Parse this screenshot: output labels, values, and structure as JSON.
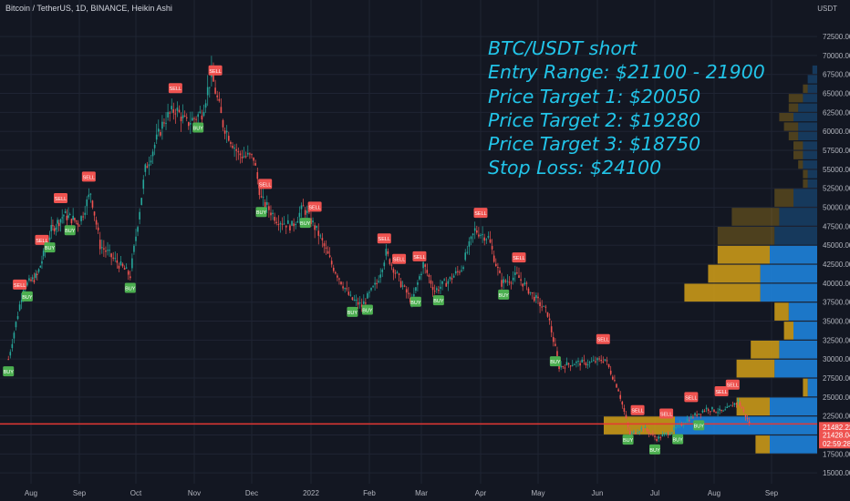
{
  "header": {
    "title": "Bitcoin / TetherUS, 1D, BINANCE, Heikin Ashi",
    "currency": "USDT"
  },
  "annotation": {
    "lines": [
      "BTC/USDT short",
      "Entry Range: $21100 - 21900",
      "Price Target 1: $20050",
      "Price Target 2: $19280",
      "Price Target 3: $18750",
      "Stop Loss: $24100"
    ]
  },
  "colors": {
    "background": "#131722",
    "bull": "#26a69a",
    "bear": "#ef5350",
    "annotation": "#22c4e8",
    "price_line": "#e53935",
    "vp_up": "#2962ff",
    "vp_down": "#d4a017"
  },
  "price_tags": {
    "last": "21482.22",
    "close": "21428.04",
    "countdown": "02:59:28"
  },
  "chart_data": {
    "type": "candlestick",
    "title": "Bitcoin / TetherUS, 1D, BINANCE, Heikin Ashi",
    "y_unit": "USDT",
    "ylim": [
      13500,
      73500
    ],
    "y_ticks": [
      "72500.00",
      "70000.00",
      "67500.00",
      "65000.00",
      "62500.00",
      "60000.00",
      "57500.00",
      "55000.00",
      "52500.00",
      "50000.00",
      "47500.00",
      "45000.00",
      "42500.00",
      "40000.00",
      "37500.00",
      "35000.00",
      "32500.00",
      "30000.00",
      "27500.00",
      "25000.00",
      "22500.00",
      "20000.00",
      "17500.00",
      "15000.00"
    ],
    "x_ticks": [
      "Aug",
      "Sep",
      "Oct",
      "Nov",
      "Dec",
      "2022",
      "Feb",
      "Mar",
      "Apr",
      "May",
      "Jun",
      "Jul",
      "Aug",
      "Sep"
    ],
    "price_path": [
      {
        "date": "2021-07-20",
        "price": 30000
      },
      {
        "date": "2021-07-28",
        "price": 39500
      },
      {
        "date": "2021-08-05",
        "price": 41000
      },
      {
        "date": "2021-08-14",
        "price": 47000
      },
      {
        "date": "2021-08-22",
        "price": 49000
      },
      {
        "date": "2021-09-01",
        "price": 48000
      },
      {
        "date": "2021-09-07",
        "price": 52000
      },
      {
        "date": "2021-09-12",
        "price": 45000
      },
      {
        "date": "2021-09-20",
        "price": 43000
      },
      {
        "date": "2021-09-28",
        "price": 41000
      },
      {
        "date": "2021-10-06",
        "price": 55000
      },
      {
        "date": "2021-10-16",
        "price": 61500
      },
      {
        "date": "2021-10-22",
        "price": 63000
      },
      {
        "date": "2021-10-28",
        "price": 61000
      },
      {
        "date": "2021-11-05",
        "price": 62500
      },
      {
        "date": "2021-11-10",
        "price": 67500
      },
      {
        "date": "2021-11-16",
        "price": 61000
      },
      {
        "date": "2021-11-24",
        "price": 57000
      },
      {
        "date": "2021-12-02",
        "price": 56500
      },
      {
        "date": "2021-12-06",
        "price": 51000
      },
      {
        "date": "2021-12-14",
        "price": 48500
      },
      {
        "date": "2021-12-22",
        "price": 47500
      },
      {
        "date": "2021-12-28",
        "price": 50000
      },
      {
        "date": "2022-01-05",
        "price": 46500
      },
      {
        "date": "2022-01-12",
        "price": 42500
      },
      {
        "date": "2022-01-22",
        "price": 38000
      },
      {
        "date": "2022-01-28",
        "price": 37000
      },
      {
        "date": "2022-02-05",
        "price": 40000
      },
      {
        "date": "2022-02-10",
        "price": 44000
      },
      {
        "date": "2022-02-18",
        "price": 40000
      },
      {
        "date": "2022-02-24",
        "price": 37500
      },
      {
        "date": "2022-03-02",
        "price": 42500
      },
      {
        "date": "2022-03-08",
        "price": 39000
      },
      {
        "date": "2022-03-16",
        "price": 40500
      },
      {
        "date": "2022-03-22",
        "price": 42000
      },
      {
        "date": "2022-03-29",
        "price": 47000
      },
      {
        "date": "2022-04-05",
        "price": 46000
      },
      {
        "date": "2022-04-12",
        "price": 40000
      },
      {
        "date": "2022-04-20",
        "price": 41000
      },
      {
        "date": "2022-04-28",
        "price": 38500
      },
      {
        "date": "2022-05-06",
        "price": 36000
      },
      {
        "date": "2022-05-12",
        "price": 29000
      },
      {
        "date": "2022-05-20",
        "price": 29500
      },
      {
        "date": "2022-05-28",
        "price": 29500
      },
      {
        "date": "2022-06-05",
        "price": 30000
      },
      {
        "date": "2022-06-12",
        "price": 26000
      },
      {
        "date": "2022-06-18",
        "price": 20000
      },
      {
        "date": "2022-06-25",
        "price": 21000
      },
      {
        "date": "2022-07-02",
        "price": 19500
      },
      {
        "date": "2022-07-10",
        "price": 20500
      },
      {
        "date": "2022-07-18",
        "price": 22000
      },
      {
        "date": "2022-07-28",
        "price": 23500
      },
      {
        "date": "2022-08-06",
        "price": 23000
      },
      {
        "date": "2022-08-14",
        "price": 24500
      },
      {
        "date": "2022-08-20",
        "price": 21500
      }
    ],
    "signals": [
      {
        "label": "BUY",
        "date": "2021-07-20"
      },
      {
        "label": "SELL",
        "date": "2021-07-26"
      },
      {
        "label": "BUY",
        "date": "2021-07-30"
      },
      {
        "label": "SELL",
        "date": "2021-08-08"
      },
      {
        "label": "BUY",
        "date": "2021-08-13"
      },
      {
        "label": "SELL",
        "date": "2021-08-20"
      },
      {
        "label": "BUY",
        "date": "2021-08-26"
      },
      {
        "label": "SELL",
        "date": "2021-09-06"
      },
      {
        "label": "BUY",
        "date": "2021-09-28"
      },
      {
        "label": "SELL",
        "date": "2021-10-22"
      },
      {
        "label": "BUY",
        "date": "2021-11-03"
      },
      {
        "label": "SELL",
        "date": "2021-11-12"
      },
      {
        "label": "SELL",
        "date": "2021-12-08"
      },
      {
        "label": "BUY",
        "date": "2021-12-06"
      },
      {
        "label": "BUY",
        "date": "2021-12-29"
      },
      {
        "label": "SELL",
        "date": "2022-01-03"
      },
      {
        "label": "SELL",
        "date": "2022-02-09"
      },
      {
        "label": "SELL",
        "date": "2022-02-17"
      },
      {
        "label": "BUY",
        "date": "2022-01-23"
      },
      {
        "label": "BUY",
        "date": "2022-01-31"
      },
      {
        "label": "BUY",
        "date": "2022-02-26"
      },
      {
        "label": "SELL",
        "date": "2022-02-28"
      },
      {
        "label": "BUY",
        "date": "2022-03-10"
      },
      {
        "label": "SELL",
        "date": "2022-04-01"
      },
      {
        "label": "BUY",
        "date": "2022-04-13"
      },
      {
        "label": "SELL",
        "date": "2022-04-21"
      },
      {
        "label": "BUY",
        "date": "2022-05-10"
      },
      {
        "label": "SELL",
        "date": "2022-06-04"
      },
      {
        "label": "BUY",
        "date": "2022-06-17"
      },
      {
        "label": "SELL",
        "date": "2022-06-22"
      },
      {
        "label": "BUY",
        "date": "2022-07-01"
      },
      {
        "label": "SELL",
        "date": "2022-07-07"
      },
      {
        "label": "BUY",
        "date": "2022-07-13"
      },
      {
        "label": "SELL",
        "date": "2022-07-20"
      },
      {
        "label": "BUY",
        "date": "2022-07-24"
      },
      {
        "label": "SELL",
        "date": "2022-08-05"
      },
      {
        "label": "SELL",
        "date": "2022-08-11"
      }
    ],
    "volume_profile": [
      {
        "price_low": 67500,
        "price_high": 68750,
        "up": 1,
        "down": 0
      },
      {
        "price_low": 66250,
        "price_high": 67500,
        "up": 2,
        "down": 0
      },
      {
        "price_low": 65000,
        "price_high": 66250,
        "up": 2,
        "down": 1
      },
      {
        "price_low": 63750,
        "price_high": 65000,
        "up": 3,
        "down": 3
      },
      {
        "price_low": 62500,
        "price_high": 63750,
        "up": 4,
        "down": 2
      },
      {
        "price_low": 61250,
        "price_high": 62500,
        "up": 5,
        "down": 3
      },
      {
        "price_low": 60000,
        "price_high": 61250,
        "up": 4,
        "down": 3
      },
      {
        "price_low": 58750,
        "price_high": 60000,
        "up": 4,
        "down": 2
      },
      {
        "price_low": 57500,
        "price_high": 58750,
        "up": 3,
        "down": 2
      },
      {
        "price_low": 56250,
        "price_high": 57500,
        "up": 3,
        "down": 2
      },
      {
        "price_low": 55000,
        "price_high": 56250,
        "up": 3,
        "down": 1
      },
      {
        "price_low": 53750,
        "price_high": 55000,
        "up": 2,
        "down": 1
      },
      {
        "price_low": 52500,
        "price_high": 53750,
        "up": 2,
        "down": 1
      },
      {
        "price_low": 50000,
        "price_high": 52500,
        "up": 5,
        "down": 4
      },
      {
        "price_low": 47500,
        "price_high": 50000,
        "up": 8,
        "down": 10
      },
      {
        "price_low": 45000,
        "price_high": 47500,
        "up": 9,
        "down": 12
      },
      {
        "price_low": 42500,
        "price_high": 45000,
        "up": 10,
        "down": 11
      },
      {
        "price_low": 40000,
        "price_high": 42500,
        "up": 12,
        "down": 11
      },
      {
        "price_low": 37500,
        "price_high": 40000,
        "up": 12,
        "down": 16
      },
      {
        "price_low": 35000,
        "price_high": 37500,
        "up": 6,
        "down": 3
      },
      {
        "price_low": 32500,
        "price_high": 35000,
        "up": 5,
        "down": 2
      },
      {
        "price_low": 30000,
        "price_high": 32500,
        "up": 8,
        "down": 6
      },
      {
        "price_low": 27500,
        "price_high": 30000,
        "up": 9,
        "down": 8
      },
      {
        "price_low": 25000,
        "price_high": 27500,
        "up": 2,
        "down": 1
      },
      {
        "price_low": 22500,
        "price_high": 25000,
        "up": 10,
        "down": 7
      },
      {
        "price_low": 20000,
        "price_high": 22500,
        "up": 30,
        "down": 15
      },
      {
        "price_low": 17500,
        "price_high": 20000,
        "up": 10,
        "down": 3
      }
    ],
    "levels": [
      {
        "name": "last",
        "price": 21482.22
      },
      {
        "name": "close",
        "price": 21428.04
      }
    ]
  }
}
